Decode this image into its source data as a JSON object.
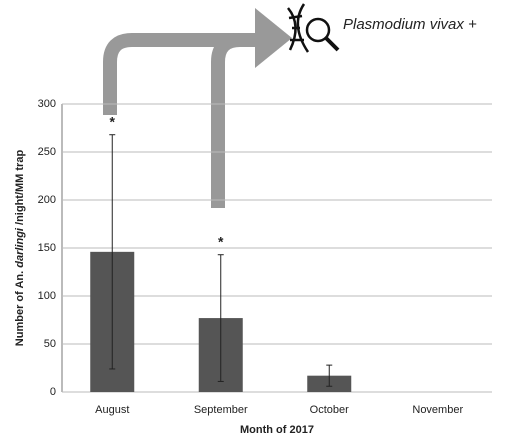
{
  "chart_data": {
    "type": "bar",
    "annotation": "Plasmodium vivax +",
    "ylabel": [
      {
        "text": "Number of An. "
      },
      {
        "text": "darlingi",
        "italic": true
      },
      {
        "text": " /night/MM trap"
      }
    ],
    "xlabel": "Month of 2017",
    "categories": [
      "August",
      "September",
      "October",
      "November"
    ],
    "values": [
      146,
      77,
      17,
      0
    ],
    "errors": [
      122,
      66,
      11,
      0
    ],
    "markers": [
      "*",
      "*",
      null,
      null
    ],
    "color": "#555555",
    "ylim": [
      0,
      300
    ],
    "yticks": [
      0,
      50,
      100,
      150,
      200,
      250,
      300
    ],
    "grid": true
  }
}
